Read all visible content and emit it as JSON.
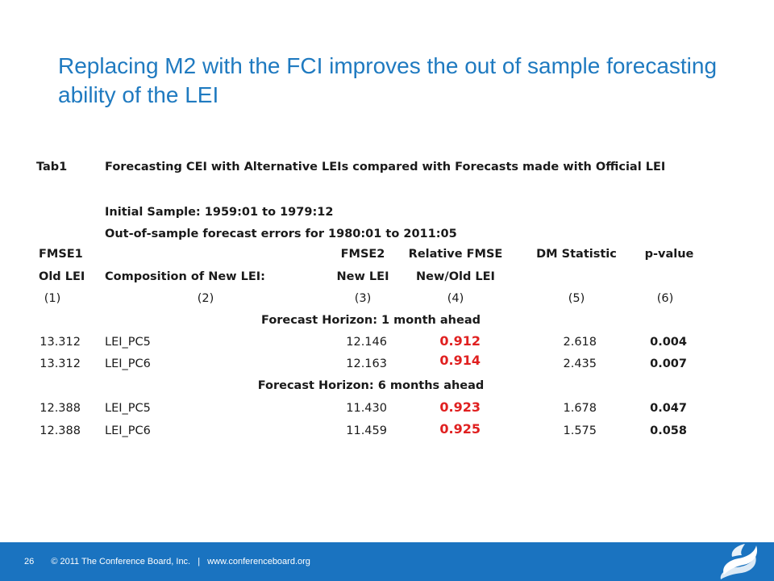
{
  "slide": {
    "title": "Replacing M2 with the FCI improves the out of sample forecasting ability of the LEI"
  },
  "table": {
    "label": "Tab1",
    "caption": "Forecasting CEI with Alternative LEIs compared with Forecasts made with Official LEI",
    "initial_sample": "Initial Sample: 1959:01 to 1979:12",
    "oos_note": "Out-of-sample forecast errors for 1980:01 to 2011:05",
    "headers": {
      "fmse1": "FMSE1",
      "fmse2": "FMSE2",
      "relative_fmse": "Relative FMSE",
      "dm_statistic": "DM Statistic",
      "p_value": "p-value",
      "old_lei": "Old LEI",
      "composition": "Composition of New LEI:",
      "new_lei": "New LEI",
      "new_old_lei": "New/Old LEI"
    },
    "col_numbers": [
      "(1)",
      "(2)",
      "(3)",
      "(4)",
      "(5)",
      "(6)"
    ],
    "horizons": [
      {
        "label": "Forecast Horizon: 1 month ahead",
        "rows": [
          {
            "fmse1": "13.312",
            "composition": "LEI_PC5",
            "fmse2": "12.146",
            "relative": "0.912",
            "dm": "2.618",
            "p": "0.004"
          },
          {
            "fmse1": "13.312",
            "composition": "LEI_PC6",
            "fmse2": "12.163",
            "relative": "0.914",
            "dm": "2.435",
            "p": "0.007"
          }
        ]
      },
      {
        "label": "Forecast Horizon: 6 months ahead",
        "rows": [
          {
            "fmse1": "12.388",
            "composition": "LEI_PC5",
            "fmse2": "11.430",
            "relative": "0.923",
            "dm": "1.678",
            "p": "0.047"
          },
          {
            "fmse1": "12.388",
            "composition": "LEI_PC6",
            "fmse2": "11.459",
            "relative": "0.925",
            "dm": "1.575",
            "p": "0.058"
          }
        ]
      }
    ]
  },
  "footer": {
    "page_number": "26",
    "copyright": "© 2011 The Conference Board, Inc.",
    "separator": "|",
    "website": "www.conferenceboard.org",
    "background_color": "#1a73c0"
  },
  "colors": {
    "title": "#1f7ac0",
    "highlight": "#e02020"
  },
  "logo": {
    "icon": "conference-board-flame-logo"
  }
}
